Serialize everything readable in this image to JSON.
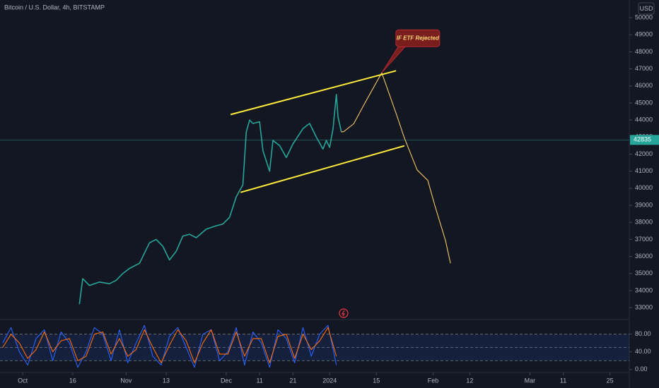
{
  "header": {
    "title": "Bitcoin / U.S. Dollar, 4h, BITSTAMP",
    "currency": "USD"
  },
  "chart_data": [
    {
      "type": "line",
      "xlim": [
        -6.8,
        181.8
      ],
      "ylim": [
        32300,
        51040
      ],
      "yticks": [
        33000,
        34000,
        35000,
        36000,
        37000,
        38000,
        39000,
        40000,
        41000,
        42000,
        43000,
        44000,
        45000,
        46000,
        47000,
        48000,
        49000,
        50000
      ],
      "last_price": 42835,
      "series": [
        {
          "color": "#26a69a",
          "x": [
            17,
            18,
            20,
            23,
            26,
            28,
            30,
            32,
            35,
            38,
            40,
            42,
            44,
            46,
            48,
            50,
            52,
            55,
            58,
            60,
            62,
            64,
            66,
            67,
            68,
            69,
            71,
            72,
            74,
            75,
            77,
            79,
            81,
            84,
            86,
            88,
            90,
            91,
            92,
            93,
            94,
            94.5,
            95.5
          ],
          "values": [
            33200,
            34700,
            34300,
            34500,
            34400,
            34600,
            35000,
            35300,
            35600,
            36800,
            37000,
            36600,
            35800,
            36300,
            37200,
            37300,
            37100,
            37600,
            37800,
            37900,
            38300,
            39500,
            40200,
            43300,
            44000,
            43800,
            43900,
            42200,
            41000,
            42800,
            42500,
            41800,
            42600,
            43500,
            43800,
            43000,
            42300,
            42800,
            42400,
            43500,
            45500,
            44200,
            43300
          ]
        },
        {
          "color": "#f7c56b",
          "x": [
            95.5,
            96.2,
            99.2,
            102.3,
            104.4,
            107.6,
            111.9,
            114.4,
            118.2,
            121.4,
            123.5,
            126.7,
            128.2
          ],
          "values": [
            43300,
            43320,
            43780,
            44900,
            45650,
            46770,
            44400,
            42950,
            41080,
            40460,
            39000,
            36940,
            35600
          ]
        },
        {
          "color": "#ffeb3b",
          "x": [
            62.3,
            111.9
          ],
          "values": [
            44320,
            46890
          ]
        },
        {
          "color": "#ffeb3b",
          "x": [
            65.3,
            114.4
          ],
          "values": [
            39760,
            42490
          ]
        }
      ],
      "annotations": [
        {
          "text": "IF ETF Rejected",
          "x": 107.6,
          "y": 46770
        }
      ]
    },
    {
      "type": "line",
      "xlim": [
        -6.8,
        181.8
      ],
      "ylim": [
        -6.7,
        113
      ],
      "yticks": [
        {
          "value": 80,
          "label": "80.00"
        },
        {
          "value": 40,
          "label": "40.00"
        },
        {
          "value": 0,
          "label": "0.00"
        }
      ],
      "levels": [
        80,
        50,
        20
      ],
      "xticks": [
        {
          "value": 0,
          "label": "Oct"
        },
        {
          "value": 15,
          "label": "16"
        },
        {
          "value": 31,
          "label": "Nov"
        },
        {
          "value": 43,
          "label": "13"
        },
        {
          "value": 61,
          "label": "Dec"
        },
        {
          "value": 71,
          "label": "11"
        },
        {
          "value": 81,
          "label": "21"
        },
        {
          "value": 92,
          "label": "2024"
        },
        {
          "value": 106,
          "label": "15"
        },
        {
          "value": 123,
          "label": "Feb"
        },
        {
          "value": 134,
          "label": "12"
        },
        {
          "value": 152,
          "label": "Mar"
        },
        {
          "value": 162,
          "label": "11"
        },
        {
          "value": 176,
          "label": "25"
        }
      ],
      "x": [
        -6,
        -3.5,
        -1,
        1.5,
        4,
        6.5,
        9,
        11.5,
        14,
        16.5,
        19,
        21.5,
        24,
        26.5,
        29,
        31.5,
        34,
        36.5,
        39,
        41.5,
        44,
        46.5,
        49,
        51.5,
        54,
        56.5,
        59,
        61.5,
        64,
        66.5,
        69,
        71.5,
        74,
        76.5,
        79,
        81.5,
        84,
        86.5,
        89,
        91.5,
        94
      ],
      "series": [
        {
          "color": "#2962ff",
          "values": [
            60,
            95,
            40,
            10,
            70,
            90,
            20,
            85,
            60,
            5,
            40,
            95,
            80,
            20,
            90,
            15,
            60,
            100,
            30,
            10,
            75,
            95,
            50,
            5,
            80,
            90,
            20,
            40,
            95,
            10,
            85,
            60,
            5,
            90,
            70,
            15,
            95,
            30,
            80,
            100,
            10
          ]
        },
        {
          "color": "#ff6d00",
          "values": [
            50,
            80,
            60,
            25,
            45,
            85,
            40,
            65,
            70,
            20,
            30,
            80,
            85,
            35,
            70,
            30,
            45,
            90,
            50,
            15,
            55,
            90,
            65,
            15,
            60,
            90,
            35,
            35,
            85,
            30,
            70,
            70,
            15,
            75,
            80,
            25,
            80,
            45,
            65,
            95,
            30
          ]
        }
      ]
    }
  ]
}
